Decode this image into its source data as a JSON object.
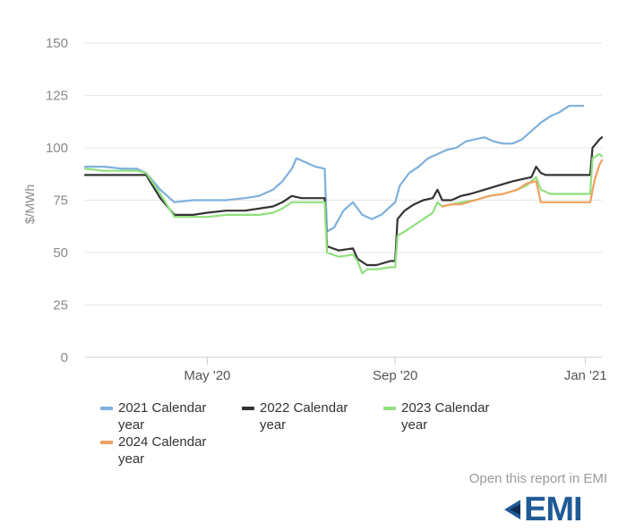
{
  "chart_data": {
    "type": "line",
    "title": "",
    "xlabel": "",
    "ylabel": "$/MWh",
    "ylim": [
      0,
      150
    ],
    "yticks": [
      0,
      25,
      50,
      75,
      100,
      125,
      150
    ],
    "xticks": [
      {
        "label": "May '20",
        "t": 2.6
      },
      {
        "label": "Sep '20",
        "t": 6.6
      },
      {
        "label": "Jan '21",
        "t": 10.65
      }
    ],
    "xlim": [
      0,
      11.0
    ],
    "x_unit": "months since Feb 2020",
    "grid": true,
    "legend_position": "bottom",
    "series": [
      {
        "name": "2021 Calendar year",
        "color": "#7eb0dd",
        "points": [
          [
            0,
            91
          ],
          [
            0.4,
            91
          ],
          [
            0.8,
            90
          ],
          [
            1.1,
            90
          ],
          [
            1.3,
            88
          ],
          [
            1.6,
            80
          ],
          [
            1.9,
            74
          ],
          [
            2.3,
            75
          ],
          [
            2.6,
            75
          ],
          [
            3.0,
            75
          ],
          [
            3.4,
            76
          ],
          [
            3.7,
            77
          ],
          [
            4.0,
            80
          ],
          [
            4.2,
            84
          ],
          [
            4.4,
            90
          ],
          [
            4.5,
            95
          ],
          [
            4.7,
            93
          ],
          [
            4.9,
            91
          ],
          [
            5.1,
            90
          ],
          [
            5.15,
            60
          ],
          [
            5.3,
            62
          ],
          [
            5.5,
            70
          ],
          [
            5.7,
            74
          ],
          [
            5.9,
            68
          ],
          [
            6.1,
            66
          ],
          [
            6.3,
            68
          ],
          [
            6.5,
            72
          ],
          [
            6.6,
            74
          ],
          [
            6.7,
            82
          ],
          [
            6.9,
            88
          ],
          [
            7.1,
            91
          ],
          [
            7.3,
            95
          ],
          [
            7.5,
            97
          ],
          [
            7.7,
            99
          ],
          [
            7.9,
            100
          ],
          [
            8.1,
            103
          ],
          [
            8.3,
            104
          ],
          [
            8.5,
            105
          ],
          [
            8.7,
            103
          ],
          [
            8.9,
            102
          ],
          [
            9.1,
            102
          ],
          [
            9.3,
            104
          ],
          [
            9.5,
            108
          ],
          [
            9.7,
            112
          ],
          [
            9.9,
            115
          ],
          [
            10.1,
            117
          ],
          [
            10.3,
            120
          ],
          [
            10.5,
            120
          ],
          [
            10.6,
            120
          ]
        ]
      },
      {
        "name": "2022 Calendar year",
        "color": "#333333",
        "points": [
          [
            0,
            87
          ],
          [
            0.4,
            87
          ],
          [
            0.8,
            87
          ],
          [
            1.1,
            87
          ],
          [
            1.3,
            87
          ],
          [
            1.6,
            76
          ],
          [
            1.9,
            68
          ],
          [
            2.3,
            68
          ],
          [
            2.6,
            69
          ],
          [
            3.0,
            70
          ],
          [
            3.4,
            70
          ],
          [
            3.7,
            71
          ],
          [
            4.0,
            72
          ],
          [
            4.2,
            74
          ],
          [
            4.4,
            77
          ],
          [
            4.6,
            76
          ],
          [
            4.9,
            76
          ],
          [
            5.1,
            76
          ],
          [
            5.15,
            53
          ],
          [
            5.4,
            51
          ],
          [
            5.7,
            52
          ],
          [
            5.8,
            47
          ],
          [
            6.0,
            44
          ],
          [
            6.2,
            44
          ],
          [
            6.5,
            46
          ],
          [
            6.6,
            46
          ],
          [
            6.65,
            66
          ],
          [
            6.8,
            70
          ],
          [
            7.0,
            73
          ],
          [
            7.2,
            75
          ],
          [
            7.4,
            76
          ],
          [
            7.5,
            80
          ],
          [
            7.6,
            75
          ],
          [
            7.8,
            75
          ],
          [
            8.0,
            77
          ],
          [
            8.2,
            78
          ],
          [
            8.5,
            80
          ],
          [
            8.8,
            82
          ],
          [
            9.1,
            84
          ],
          [
            9.3,
            85
          ],
          [
            9.5,
            86
          ],
          [
            9.6,
            91
          ],
          [
            9.7,
            88
          ],
          [
            9.8,
            87
          ],
          [
            10.0,
            87
          ],
          [
            10.3,
            87
          ],
          [
            10.6,
            87
          ],
          [
            10.75,
            87
          ],
          [
            10.8,
            100
          ],
          [
            10.95,
            104
          ],
          [
            11.0,
            105
          ]
        ]
      },
      {
        "name": "2023 Calendar year",
        "color": "#90e07e",
        "points": [
          [
            0,
            90
          ],
          [
            0.4,
            89
          ],
          [
            0.8,
            89
          ],
          [
            1.1,
            89
          ],
          [
            1.3,
            88
          ],
          [
            1.6,
            78
          ],
          [
            1.9,
            67
          ],
          [
            2.3,
            67
          ],
          [
            2.6,
            67
          ],
          [
            3.0,
            68
          ],
          [
            3.4,
            68
          ],
          [
            3.7,
            68
          ],
          [
            4.0,
            69
          ],
          [
            4.2,
            71
          ],
          [
            4.4,
            74
          ],
          [
            4.6,
            74
          ],
          [
            4.9,
            74
          ],
          [
            5.1,
            74
          ],
          [
            5.15,
            50
          ],
          [
            5.4,
            48
          ],
          [
            5.7,
            49
          ],
          [
            5.8,
            46
          ],
          [
            5.9,
            40
          ],
          [
            6.0,
            42
          ],
          [
            6.2,
            42
          ],
          [
            6.5,
            43
          ],
          [
            6.6,
            43
          ],
          [
            6.65,
            58
          ],
          [
            6.8,
            60
          ],
          [
            7.0,
            63
          ],
          [
            7.2,
            66
          ],
          [
            7.4,
            69
          ],
          [
            7.5,
            74
          ],
          [
            7.6,
            72
          ],
          [
            7.8,
            73
          ],
          [
            8.0,
            74
          ],
          [
            8.3,
            75
          ],
          [
            8.6,
            77
          ],
          [
            8.9,
            78
          ],
          [
            9.2,
            80
          ],
          [
            9.4,
            82
          ],
          [
            9.6,
            86
          ],
          [
            9.7,
            80
          ],
          [
            9.9,
            78
          ],
          [
            10.2,
            78
          ],
          [
            10.5,
            78
          ],
          [
            10.75,
            78
          ],
          [
            10.8,
            95
          ],
          [
            10.95,
            97
          ],
          [
            11.0,
            96
          ]
        ]
      },
      {
        "name": "2024 Calendar year",
        "color": "#f0a060",
        "points": [
          [
            7.6,
            72
          ],
          [
            7.8,
            73
          ],
          [
            8.0,
            73
          ],
          [
            8.3,
            75
          ],
          [
            8.6,
            77
          ],
          [
            8.9,
            78
          ],
          [
            9.2,
            80
          ],
          [
            9.4,
            83
          ],
          [
            9.6,
            84
          ],
          [
            9.7,
            74
          ],
          [
            9.9,
            74
          ],
          [
            10.2,
            74
          ],
          [
            10.5,
            74
          ],
          [
            10.75,
            74
          ],
          [
            10.85,
            85
          ],
          [
            10.95,
            92
          ],
          [
            11.0,
            94
          ]
        ]
      }
    ]
  },
  "legend": {
    "items": [
      {
        "label": "2021 Calendar year",
        "color": "#7eb0dd"
      },
      {
        "label": "2022 Calendar year",
        "color": "#333333"
      },
      {
        "label": "2023 Calendar year",
        "color": "#90e07e"
      },
      {
        "label": "2024 Calendar year",
        "color": "#f0a060"
      }
    ]
  },
  "footer": {
    "report_link": "Open this report in EMI",
    "logo_text": "EMI",
    "logo_color": "#1f5a96"
  }
}
